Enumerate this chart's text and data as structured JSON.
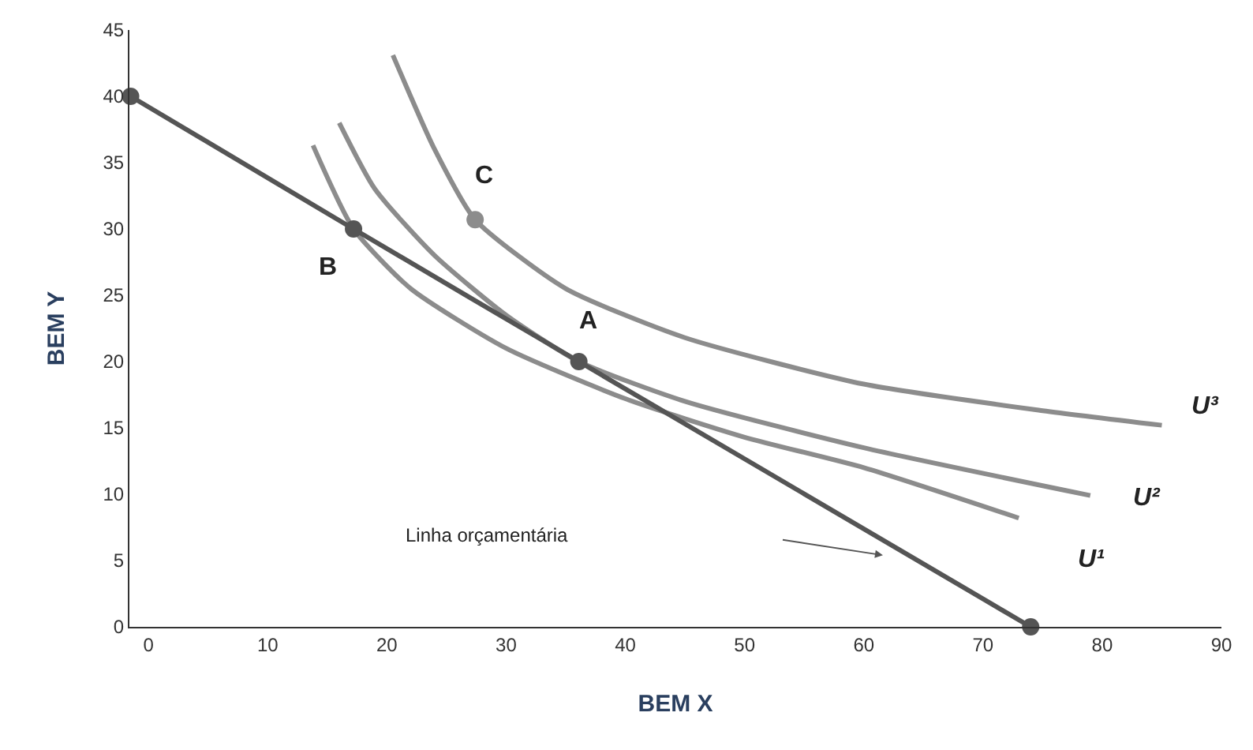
{
  "chart_data": {
    "type": "line",
    "xlabel": "BEM X",
    "ylabel": "BEM Y",
    "xlim": [
      -1.6,
      90
    ],
    "xticks": [
      0,
      10,
      20,
      30,
      40,
      50,
      60,
      70,
      80,
      90
    ],
    "ylim": [
      0,
      45
    ],
    "yticks": [
      0,
      5,
      10,
      15,
      20,
      25,
      30,
      35,
      40,
      45
    ],
    "grid": false,
    "series": [
      {
        "type": "line",
        "color": "#8c8c8c",
        "marker": "none",
        "x": [
          20.5,
          24,
          27.4,
          35,
          45,
          60,
          75,
          85
        ],
        "values": [
          43.1,
          36,
          30.7,
          25.5,
          21.8,
          18.3,
          16.3,
          15.2
        ]
      },
      {
        "type": "line",
        "color": "#8c8c8c",
        "marker": "none",
        "x": [
          16,
          19,
          24,
          30,
          36.1,
          45,
          60,
          79
        ],
        "values": [
          38,
          33,
          28,
          23.5,
          20,
          17,
          13.5,
          9.9
        ]
      },
      {
        "type": "line",
        "color": "#8c8c8c",
        "marker": "none",
        "x": [
          13.8,
          17.2,
          22,
          30,
          40,
          50,
          60,
          73
        ],
        "values": [
          36.3,
          30,
          25.5,
          21,
          17.2,
          14.3,
          12,
          8.2
        ]
      },
      {
        "type": "line",
        "color": "#555555",
        "marker": "circle",
        "x": [
          -1.5,
          17.2,
          36.1,
          74
        ],
        "values": [
          40,
          30,
          20,
          0
        ]
      },
      {
        "type": "scatter",
        "color": "#8c8c8c",
        "marker": "circle",
        "x": [
          27.4
        ],
        "values": [
          30.7
        ]
      }
    ],
    "annotations": [
      {
        "text": "A",
        "x": 36.1,
        "y": 20
      },
      {
        "text": "B",
        "x": 17.2,
        "y": 30
      },
      {
        "text": "C",
        "x": 27.4,
        "y": 30.7
      },
      {
        "text": "U³",
        "x": 85,
        "y": 15.2
      },
      {
        "text": "U²",
        "x": 79,
        "y": 9.9
      },
      {
        "text": "U¹",
        "x": 73,
        "y": 8.2
      },
      "Linha orçamentária"
    ]
  }
}
